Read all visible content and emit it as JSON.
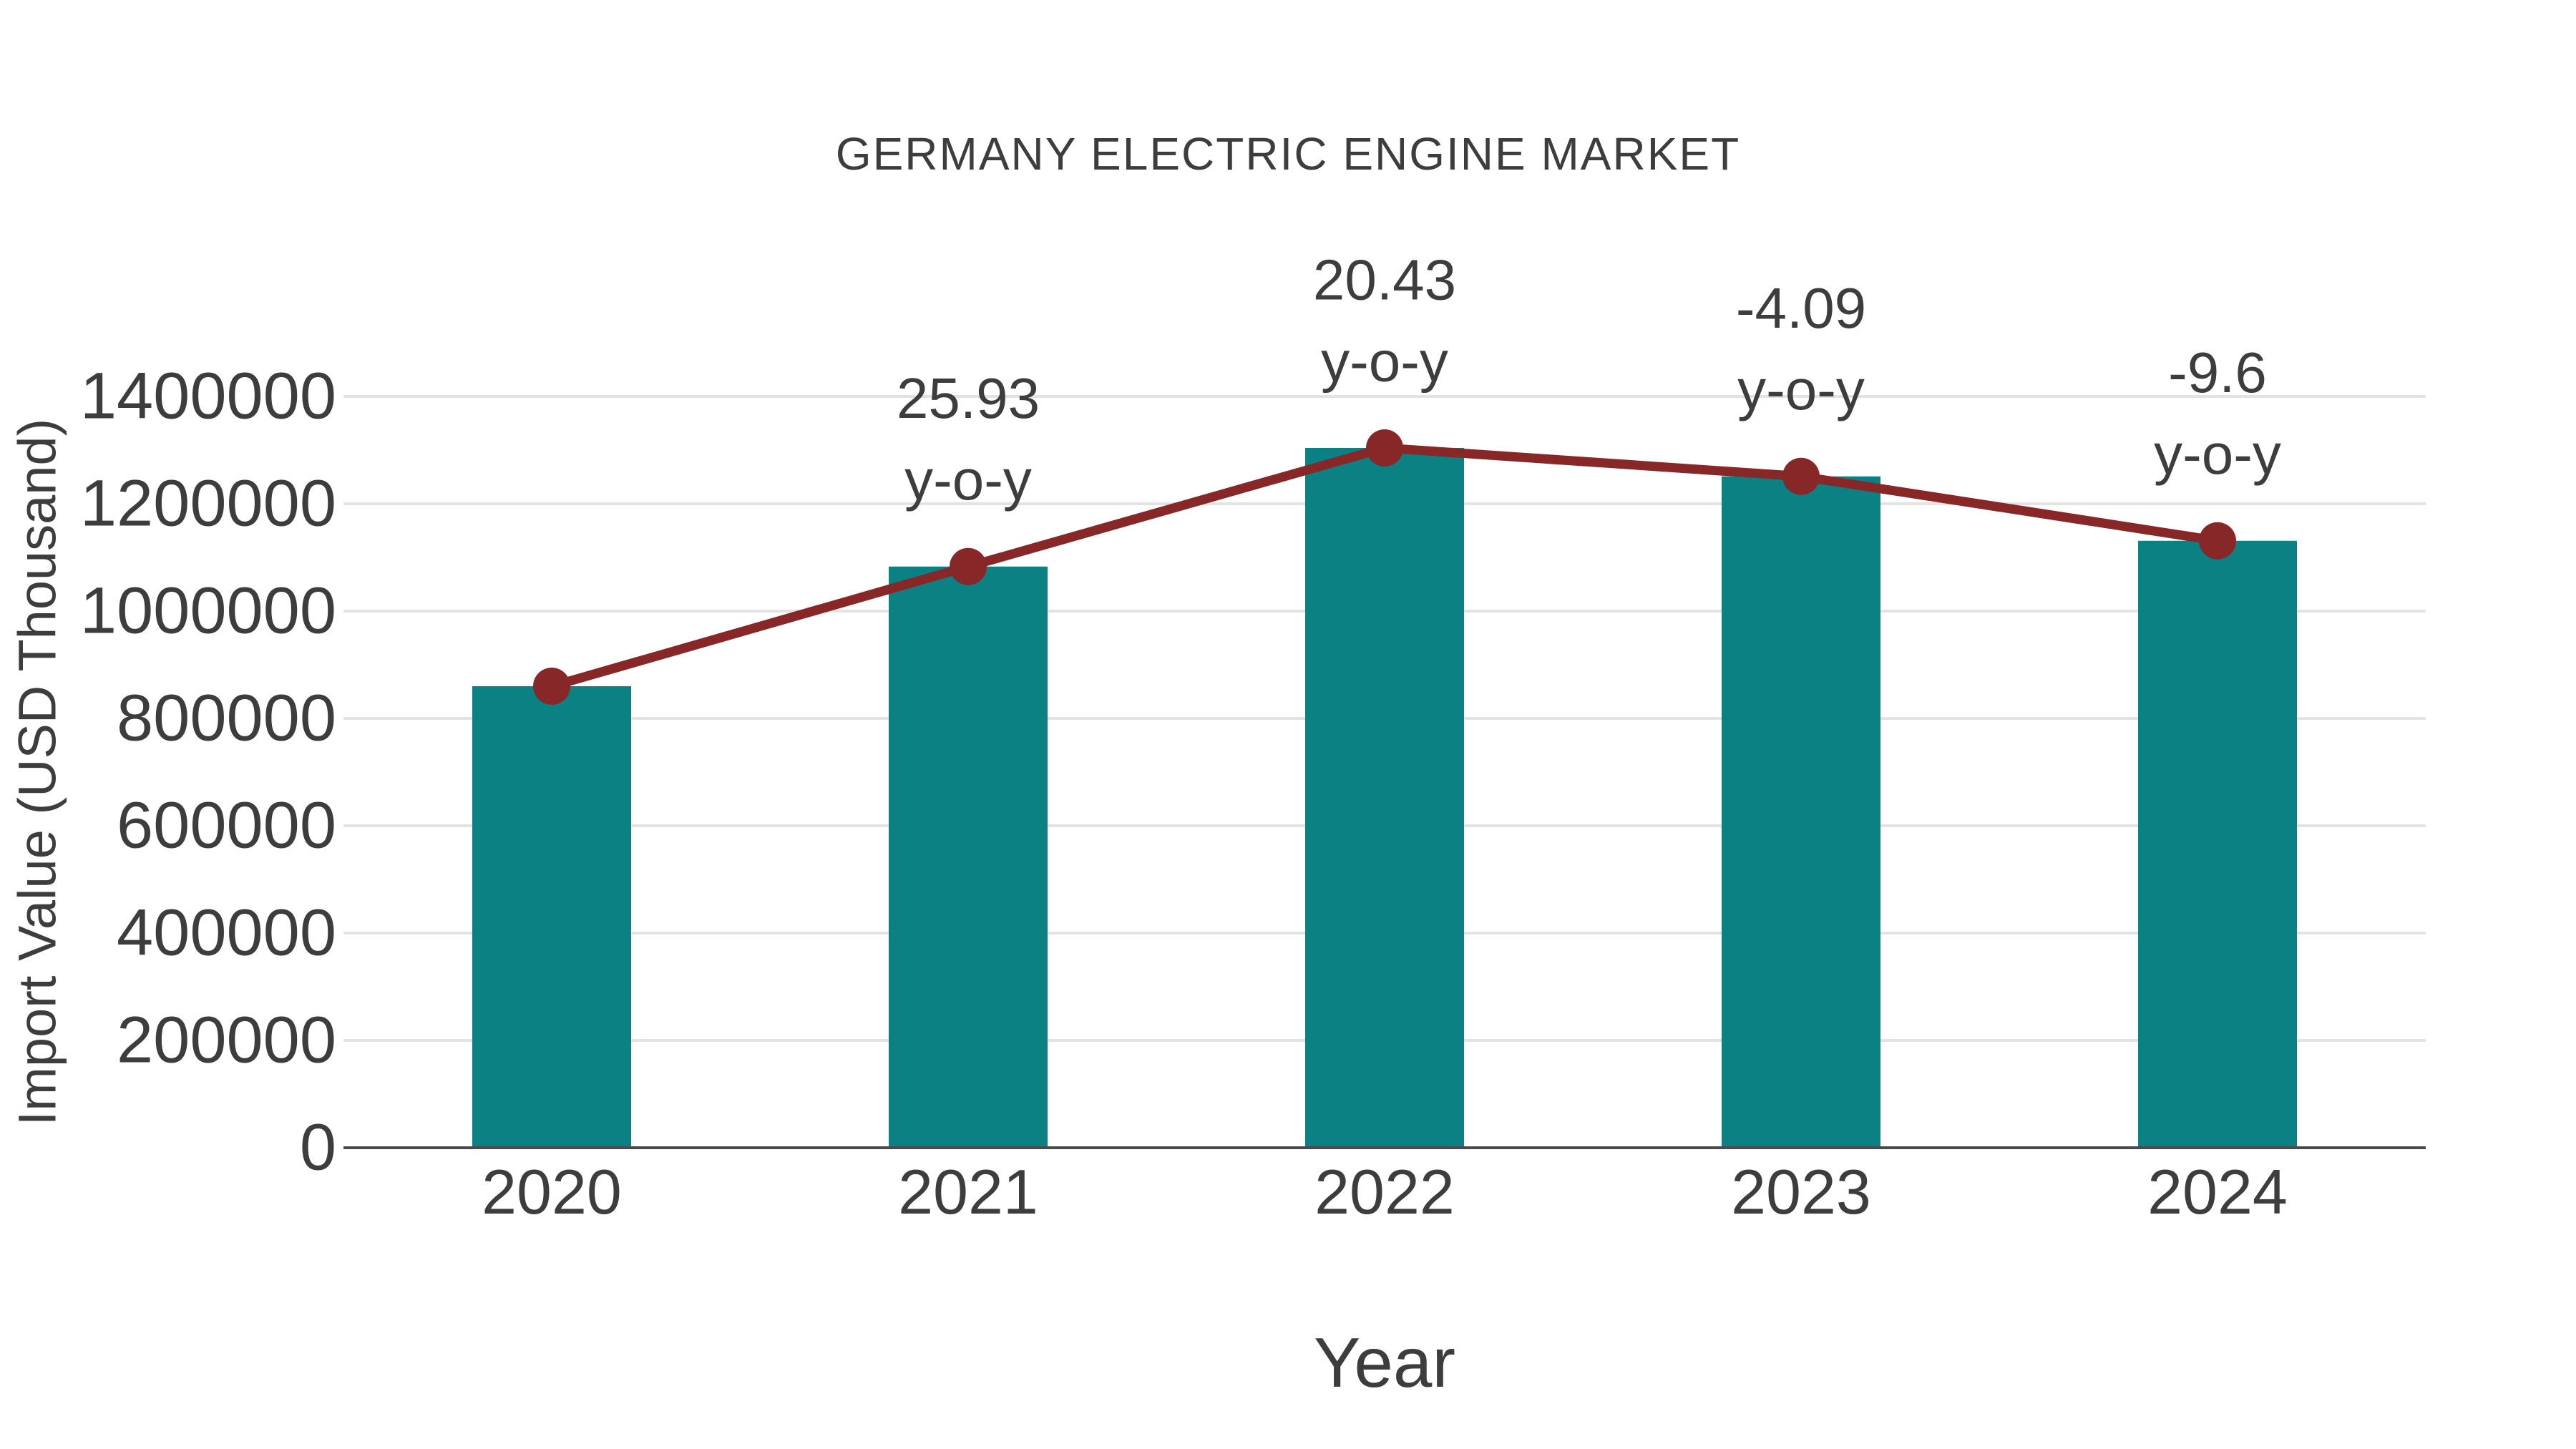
{
  "chart_data": {
    "type": "bar",
    "title": "GERMANY ELECTRIC ENGINE MARKET",
    "xlabel": "Year",
    "ylabel": "Import Value (USD Thousand)",
    "categories": [
      "2020",
      "2021",
      "2022",
      "2023",
      "2024"
    ],
    "series": [
      {
        "name": "Import Value (USD Thousand)",
        "type": "bar",
        "values": [
          860000,
          1083000,
          1304000,
          1251000,
          1131000
        ]
      },
      {
        "name": "y-o-y change",
        "type": "line",
        "values": [
          860000,
          1083000,
          1304000,
          1251000,
          1131000
        ],
        "point_labels": [
          "",
          "25.93",
          "20.43",
          "-4.09",
          "-9.6"
        ],
        "label_suffix": "y-o-y"
      }
    ],
    "yoy_percent": [
      null,
      25.93,
      20.43,
      -4.09,
      -9.6
    ],
    "ylim": [
      0,
      1400000
    ],
    "yticks": [
      0,
      200000,
      400000,
      600000,
      800000,
      1000000,
      1200000,
      1400000
    ],
    "grid": true,
    "legend": false,
    "colors": {
      "bar": "#0c8184",
      "line": "#872727",
      "marker": "#872727",
      "grid": "#e3e3e3",
      "axis": "#4a4a4a",
      "text": "#3d3d3d"
    }
  }
}
